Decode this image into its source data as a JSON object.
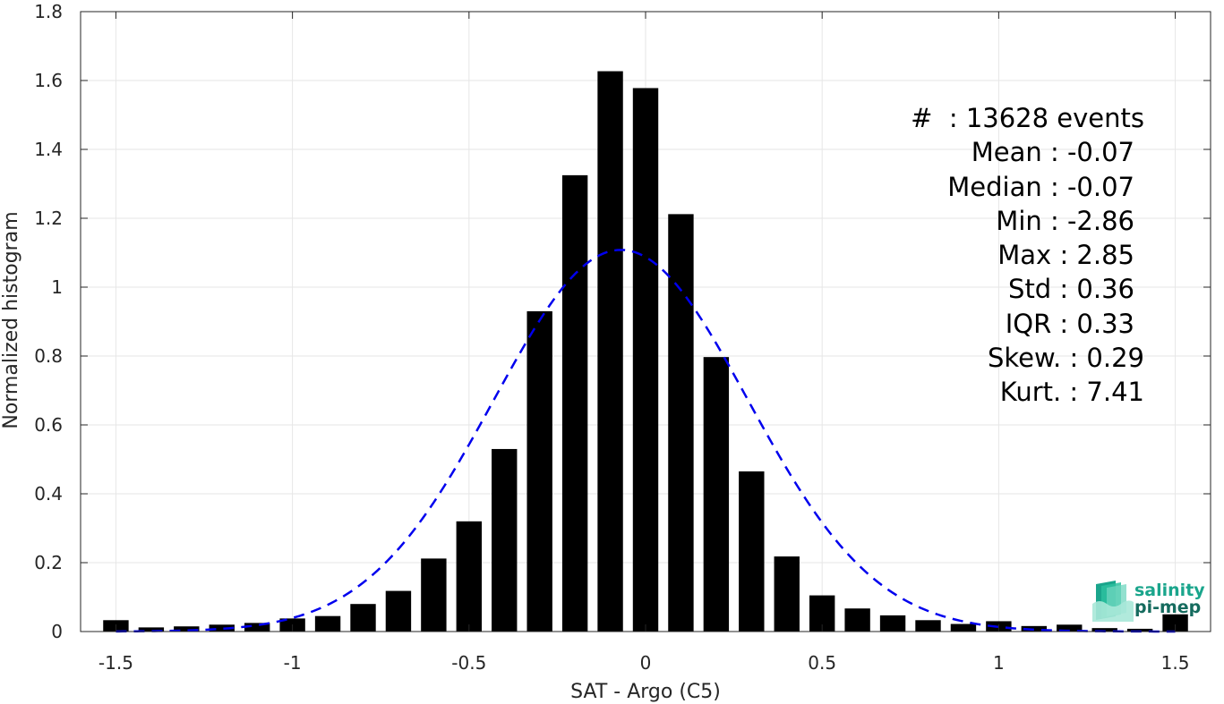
{
  "chart_data": {
    "type": "bar",
    "xlabel": "SAT - Argo (C5)",
    "ylabel": "Normalized histogram",
    "xlim": [
      -1.6,
      1.6
    ],
    "ylim": [
      0,
      1.8
    ],
    "x_ticks": [
      -1.5,
      -1,
      -0.5,
      0,
      0.5,
      1,
      1.5
    ],
    "x_tick_labels": [
      "-1.5",
      "-1",
      "-0.5",
      "0",
      "0.5",
      "1",
      "1.5"
    ],
    "y_ticks": [
      0,
      0.2,
      0.4,
      0.6,
      0.8,
      1,
      1.2,
      1.4,
      1.6,
      1.8
    ],
    "y_tick_labels": [
      "0",
      "0.2",
      "0.4",
      "0.6",
      "0.8",
      "1",
      "1.2",
      "1.4",
      "1.6",
      "1.8"
    ],
    "grid": true,
    "bar_color": "#000000",
    "bin_width": 0.1,
    "x": [
      -1.5,
      -1.4,
      -1.3,
      -1.2,
      -1.1,
      -1.0,
      -0.9,
      -0.8,
      -0.7,
      -0.6,
      -0.5,
      -0.4,
      -0.3,
      -0.2,
      -0.1,
      0.0,
      0.1,
      0.2,
      0.3,
      0.4,
      0.5,
      0.6,
      0.7,
      0.8,
      0.9,
      1.0,
      1.1,
      1.2,
      1.3,
      1.4,
      1.5
    ],
    "values": [
      0.033,
      0.012,
      0.015,
      0.02,
      0.025,
      0.038,
      0.045,
      0.08,
      0.118,
      0.212,
      0.32,
      0.53,
      0.93,
      1.325,
      1.627,
      1.578,
      1.212,
      0.797,
      0.465,
      0.218,
      0.105,
      0.067,
      0.047,
      0.033,
      0.022,
      0.03,
      0.016,
      0.02,
      0.01,
      0.008,
      0.05
    ],
    "fit_curve": {
      "type": "gaussian",
      "mean": -0.07,
      "std": 0.36,
      "color": "#0000ee",
      "style": "dashed"
    }
  },
  "stats": {
    "lines": [
      "#  : 13628 events",
      "Mean : -0.07",
      "Median : -0.07",
      "Min : -2.86",
      "Max : 2.85",
      "Std : 0.36",
      "IQR : 0.33",
      "Skew. : 0.29",
      "Kurt. : 7.41"
    ]
  },
  "logo": {
    "line1": "salinity",
    "line2": "pi-mep",
    "color1": "#1aa58c",
    "color2": "#156b5e"
  }
}
